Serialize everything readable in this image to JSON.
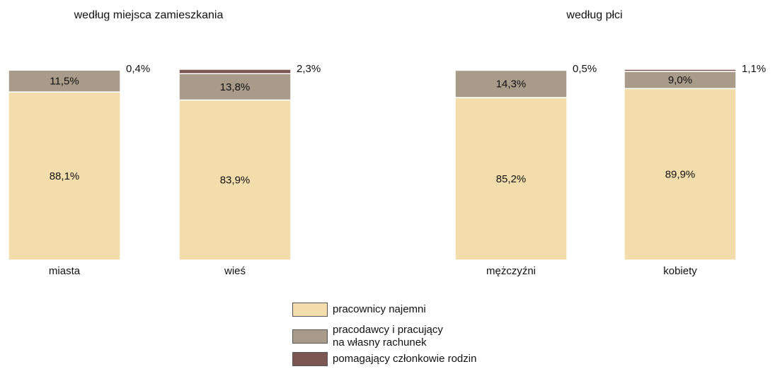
{
  "chart_data": {
    "type": "bar",
    "stacked": true,
    "ylim": [
      0,
      100
    ],
    "groups": [
      {
        "title": "według miejsca zamieszkania",
        "categories": [
          "miasta",
          "wieś"
        ]
      },
      {
        "title": "według płci",
        "categories": [
          "mężczyźni",
          "kobiety"
        ]
      }
    ],
    "series": [
      {
        "name": "pracownicy najemni",
        "color": "#f3ddac",
        "values": [
          88.1,
          83.9,
          85.2,
          89.9
        ],
        "value_labels": [
          "88,1%",
          "83,9%",
          "85,2%",
          "89,9%"
        ]
      },
      {
        "name": "pracodawcy i pracujący\nna własny rachunek",
        "color": "#a89b89",
        "values": [
          11.5,
          13.8,
          14.3,
          9.0
        ],
        "value_labels": [
          "11,5%",
          "13,8%",
          "14,3%",
          "9,0%"
        ]
      },
      {
        "name": "pomagający członkowie rodzin",
        "color": "#7b5652",
        "values": [
          0.4,
          2.3,
          0.5,
          1.1
        ],
        "value_labels": [
          "0,4%",
          "2,3%",
          "0,5%",
          "1,1%"
        ]
      }
    ]
  }
}
